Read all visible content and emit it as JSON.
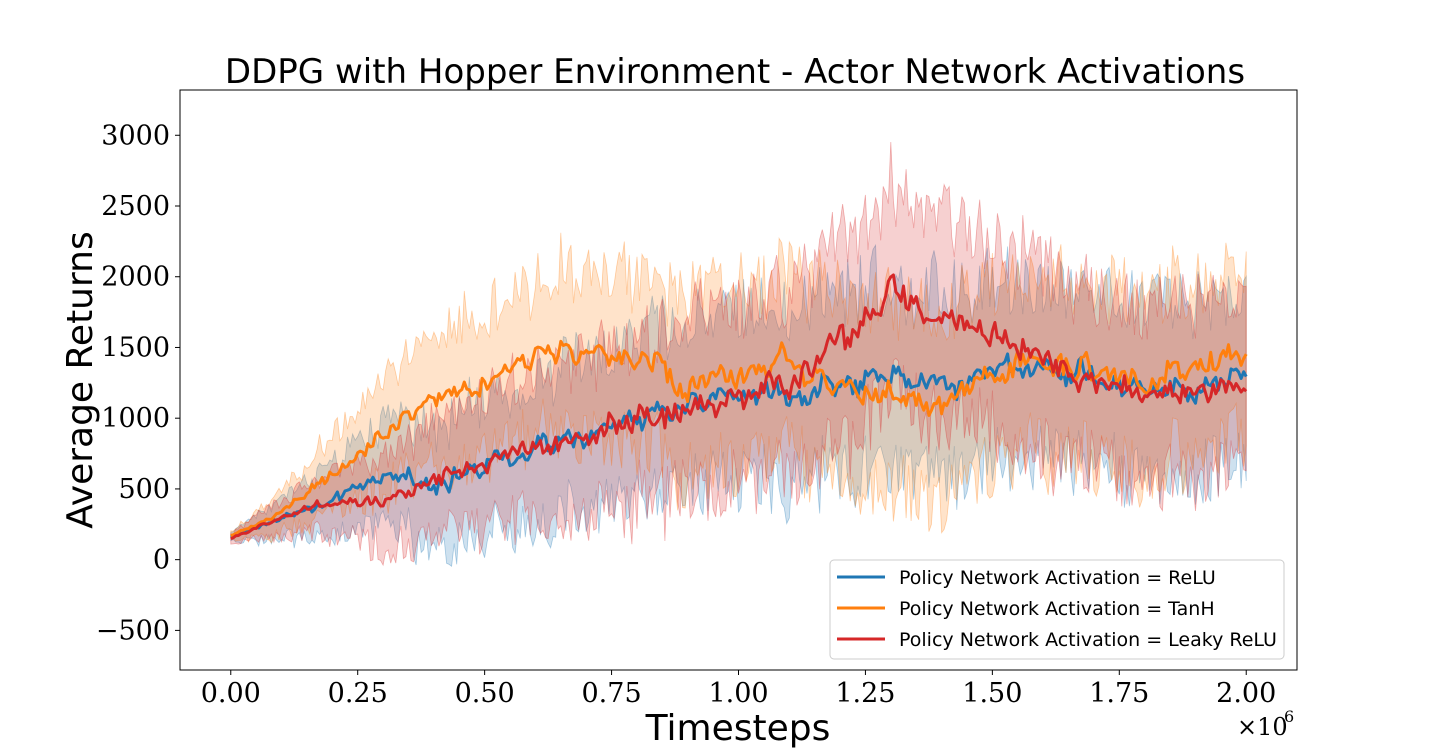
{
  "chart_data": {
    "type": "line",
    "title": "DDPG with Hopper Environment - Actor Network Activations",
    "xlabel": "Timesteps",
    "ylabel": "Average Returns",
    "x_multiplier": "×10",
    "x_multiplier_exp": "6",
    "xlim": [
      -0.1,
      2.1
    ],
    "ylim": [
      -780,
      3320
    ],
    "x_ticks": [
      0.0,
      0.25,
      0.5,
      0.75,
      1.0,
      1.25,
      1.5,
      1.75,
      2.0
    ],
    "x_tick_labels": [
      "0.00",
      "0.25",
      "0.50",
      "0.75",
      "1.00",
      "1.25",
      "1.50",
      "1.75",
      "2.00"
    ],
    "y_ticks": [
      -500,
      0,
      500,
      1000,
      1500,
      2000,
      2500,
      3000
    ],
    "y_tick_labels": [
      "−500",
      "0",
      "500",
      "1000",
      "1500",
      "2000",
      "2500",
      "3000"
    ],
    "grid": false,
    "legend_position": "lower-right",
    "x": [
      0.0,
      0.1,
      0.2,
      0.3,
      0.4,
      0.5,
      0.6,
      0.7,
      0.8,
      0.9,
      1.0,
      1.1,
      1.2,
      1.3,
      1.4,
      1.5,
      1.6,
      1.7,
      1.8,
      1.9,
      2.0
    ],
    "series": [
      {
        "name": "Policy Network Activation = ReLU",
        "color": "#1f77b4",
        "values": [
          160,
          300,
          400,
          600,
          550,
          650,
          800,
          850,
          1000,
          1100,
          1200,
          1150,
          1250,
          1300,
          1250,
          1350,
          1350,
          1300,
          1200,
          1250,
          1300
        ],
        "band_spread": [
          40,
          200,
          350,
          500,
          600,
          650,
          700,
          750,
          800,
          800,
          800,
          850,
          900,
          900,
          900,
          900,
          850,
          850,
          850,
          850,
          800
        ]
      },
      {
        "name": "Policy Network Activation = TanH",
        "color": "#ff7f0e",
        "values": [
          170,
          340,
          600,
          900,
          1150,
          1250,
          1450,
          1500,
          1450,
          1200,
          1300,
          1400,
          1200,
          1150,
          1100,
          1300,
          1400,
          1350,
          1250,
          1400,
          1450
        ],
        "band_spread": [
          40,
          200,
          400,
          550,
          650,
          700,
          750,
          800,
          800,
          850,
          850,
          850,
          900,
          900,
          900,
          900,
          900,
          850,
          850,
          850,
          800
        ]
      },
      {
        "name": "Policy Network Activation = Leaky ReLU",
        "color": "#d62728",
        "values": [
          150,
          300,
          420,
          420,
          520,
          700,
          780,
          900,
          1000,
          1050,
          1150,
          1250,
          1500,
          1900,
          1700,
          1650,
          1400,
          1300,
          1150,
          1200,
          1250
        ],
        "band_spread": [
          40,
          180,
          300,
          450,
          550,
          650,
          700,
          750,
          800,
          850,
          850,
          900,
          950,
          1000,
          950,
          900,
          900,
          850,
          850,
          850,
          800
        ]
      }
    ]
  }
}
